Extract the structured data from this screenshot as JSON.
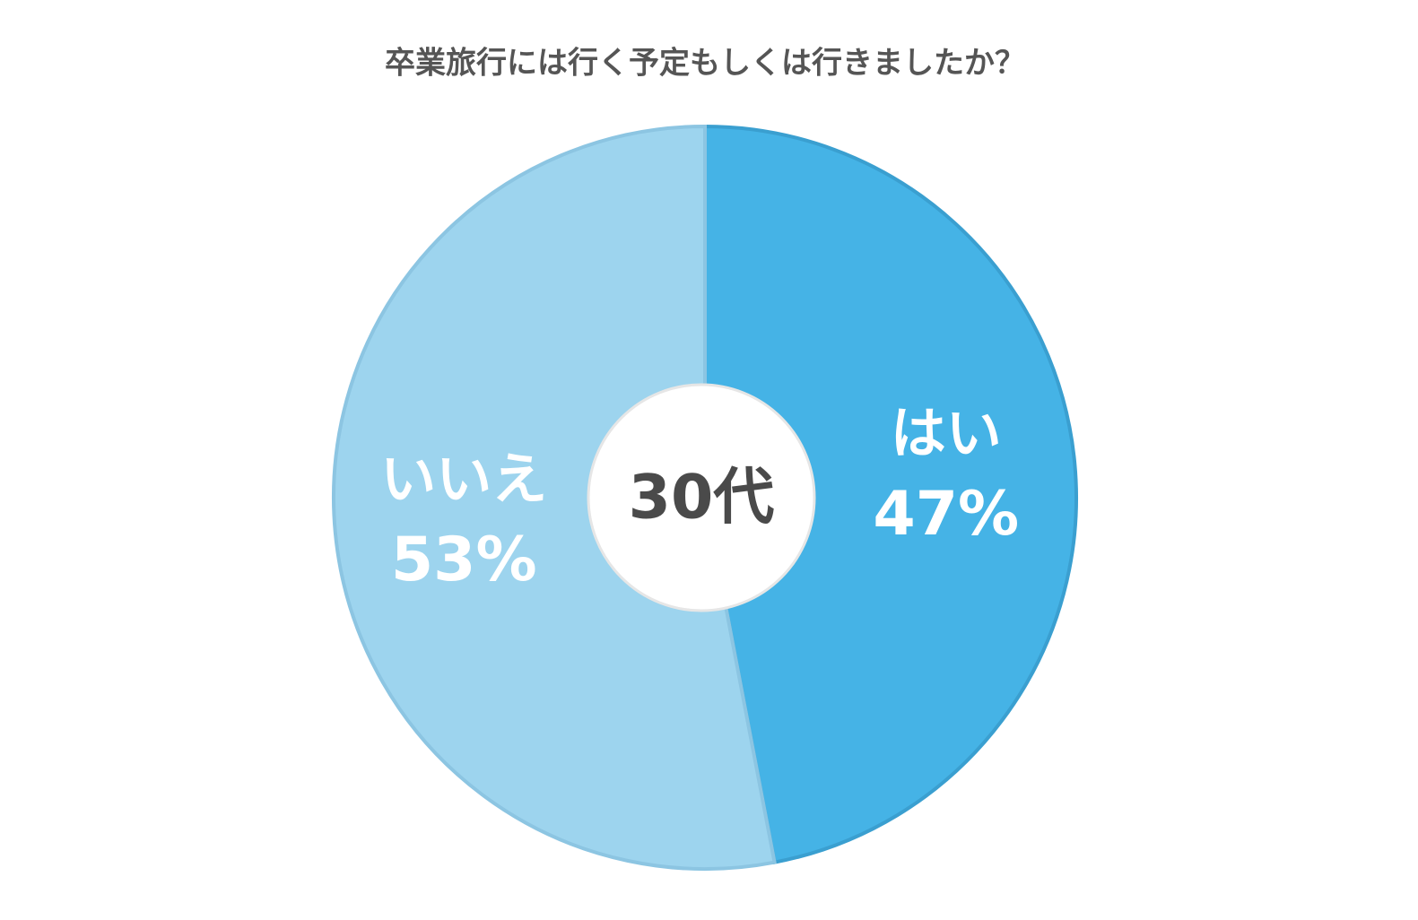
{
  "chart_data": {
    "type": "pie",
    "title": "卒業旅行には行く予定もしくは行きましたか？",
    "center_label": "30代",
    "categories": [
      "はい",
      "いいえ"
    ],
    "values": [
      47,
      53
    ],
    "value_labels": [
      "47%",
      "53%"
    ],
    "colors": [
      "#45b3e6",
      "#9dd4ee"
    ]
  }
}
